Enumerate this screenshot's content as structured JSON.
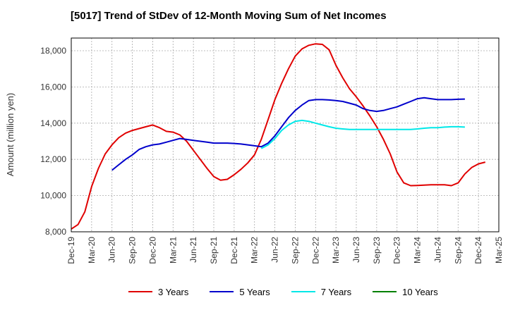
{
  "chart_data": {
    "type": "line",
    "title": "[5017]  Trend of StDev of 12-Month Moving Sum of Net Incomes",
    "xlabel": "",
    "ylabel": "Amount (million yen)",
    "ylim": [
      8000,
      18700
    ],
    "yticks": [
      8000,
      10000,
      12000,
      14000,
      16000,
      18000
    ],
    "ytick_labels": [
      "8,000",
      "10,000",
      "12,000",
      "14,000",
      "16,000",
      "18,000"
    ],
    "x_start": "Dec-19",
    "x_tick_labels": [
      "Dec-19",
      "Mar-20",
      "Jun-20",
      "Sep-20",
      "Dec-20",
      "Mar-21",
      "Jun-21",
      "Sep-21",
      "Dec-21",
      "Mar-22",
      "Jun-22",
      "Sep-22",
      "Dec-22",
      "Mar-23",
      "Jun-23",
      "Sep-23",
      "Dec-23",
      "Mar-24",
      "Jun-24",
      "Sep-24",
      "Dec-24",
      "Mar-25"
    ],
    "grid": true,
    "legend_position": "bottom",
    "series": [
      {
        "name": "3 Years",
        "color": "#e00000",
        "points": [
          [
            0,
            8150
          ],
          [
            1,
            8400
          ],
          [
            2,
            9100
          ],
          [
            3,
            10500
          ],
          [
            4,
            11500
          ],
          [
            5,
            12300
          ],
          [
            6,
            12800
          ],
          [
            7,
            13200
          ],
          [
            8,
            13450
          ],
          [
            9,
            13600
          ],
          [
            10,
            13700
          ],
          [
            11,
            13800
          ],
          [
            12,
            13900
          ],
          [
            13,
            13750
          ],
          [
            14,
            13550
          ],
          [
            15,
            13500
          ],
          [
            16,
            13350
          ],
          [
            17,
            13000
          ],
          [
            18,
            12500
          ],
          [
            19,
            12000
          ],
          [
            20,
            11500
          ],
          [
            21,
            11050
          ],
          [
            22,
            10850
          ],
          [
            23,
            10900
          ],
          [
            24,
            11150
          ],
          [
            25,
            11450
          ],
          [
            26,
            11800
          ],
          [
            27,
            12250
          ],
          [
            28,
            13100
          ],
          [
            29,
            14200
          ],
          [
            30,
            15300
          ],
          [
            31,
            16200
          ],
          [
            32,
            17000
          ],
          [
            33,
            17700
          ],
          [
            34,
            18100
          ],
          [
            35,
            18300
          ],
          [
            36,
            18380
          ],
          [
            37,
            18350
          ],
          [
            38,
            18050
          ],
          [
            39,
            17200
          ],
          [
            40,
            16500
          ],
          [
            41,
            15900
          ],
          [
            42,
            15450
          ],
          [
            43,
            14950
          ],
          [
            44,
            14400
          ],
          [
            45,
            13800
          ],
          [
            46,
            13100
          ],
          [
            47,
            12300
          ],
          [
            48,
            11300
          ],
          [
            49,
            10700
          ],
          [
            50,
            10550
          ],
          [
            51,
            10560
          ],
          [
            52,
            10580
          ],
          [
            53,
            10600
          ],
          [
            54,
            10600
          ],
          [
            55,
            10600
          ],
          [
            56,
            10550
          ],
          [
            57,
            10700
          ],
          [
            58,
            11200
          ],
          [
            59,
            11550
          ],
          [
            60,
            11750
          ],
          [
            61,
            11850
          ]
        ]
      },
      {
        "name": "5 Years",
        "color": "#0000cc",
        "points": [
          [
            6,
            11400
          ],
          [
            7,
            11700
          ],
          [
            8,
            12000
          ],
          [
            9,
            12250
          ],
          [
            10,
            12550
          ],
          [
            11,
            12700
          ],
          [
            12,
            12800
          ],
          [
            13,
            12850
          ],
          [
            14,
            12950
          ],
          [
            15,
            13050
          ],
          [
            16,
            13150
          ],
          [
            17,
            13100
          ],
          [
            18,
            13050
          ],
          [
            19,
            13000
          ],
          [
            20,
            12950
          ],
          [
            21,
            12900
          ],
          [
            22,
            12900
          ],
          [
            23,
            12900
          ],
          [
            24,
            12880
          ],
          [
            25,
            12850
          ],
          [
            26,
            12800
          ],
          [
            27,
            12750
          ],
          [
            28,
            12700
          ],
          [
            29,
            12900
          ],
          [
            30,
            13300
          ],
          [
            31,
            13800
          ],
          [
            32,
            14300
          ],
          [
            33,
            14700
          ],
          [
            34,
            15000
          ],
          [
            35,
            15250
          ],
          [
            36,
            15300
          ],
          [
            37,
            15300
          ],
          [
            38,
            15280
          ],
          [
            39,
            15250
          ],
          [
            40,
            15200
          ],
          [
            41,
            15100
          ],
          [
            42,
            15000
          ],
          [
            43,
            14800
          ],
          [
            44,
            14700
          ],
          [
            45,
            14650
          ],
          [
            46,
            14700
          ],
          [
            47,
            14800
          ],
          [
            48,
            14900
          ],
          [
            49,
            15050
          ],
          [
            50,
            15200
          ],
          [
            51,
            15350
          ],
          [
            52,
            15400
          ],
          [
            53,
            15350
          ],
          [
            54,
            15300
          ],
          [
            55,
            15300
          ],
          [
            56,
            15300
          ],
          [
            57,
            15320
          ],
          [
            58,
            15330
          ]
        ]
      },
      {
        "name": "7 Years",
        "color": "#00e8e8",
        "points": [
          [
            28,
            12600
          ],
          [
            29,
            12800
          ],
          [
            30,
            13150
          ],
          [
            31,
            13600
          ],
          [
            32,
            13900
          ],
          [
            33,
            14100
          ],
          [
            34,
            14150
          ],
          [
            35,
            14100
          ],
          [
            36,
            14000
          ],
          [
            37,
            13900
          ],
          [
            38,
            13800
          ],
          [
            39,
            13720
          ],
          [
            40,
            13680
          ],
          [
            41,
            13650
          ],
          [
            42,
            13650
          ],
          [
            43,
            13650
          ],
          [
            44,
            13650
          ],
          [
            45,
            13650
          ],
          [
            46,
            13650
          ],
          [
            47,
            13650
          ],
          [
            48,
            13650
          ],
          [
            49,
            13650
          ],
          [
            50,
            13650
          ],
          [
            51,
            13680
          ],
          [
            52,
            13720
          ],
          [
            53,
            13750
          ],
          [
            54,
            13750
          ],
          [
            55,
            13780
          ],
          [
            56,
            13800
          ],
          [
            57,
            13800
          ],
          [
            58,
            13780
          ]
        ]
      },
      {
        "name": "10 Years",
        "color": "#008000",
        "points": []
      }
    ]
  }
}
